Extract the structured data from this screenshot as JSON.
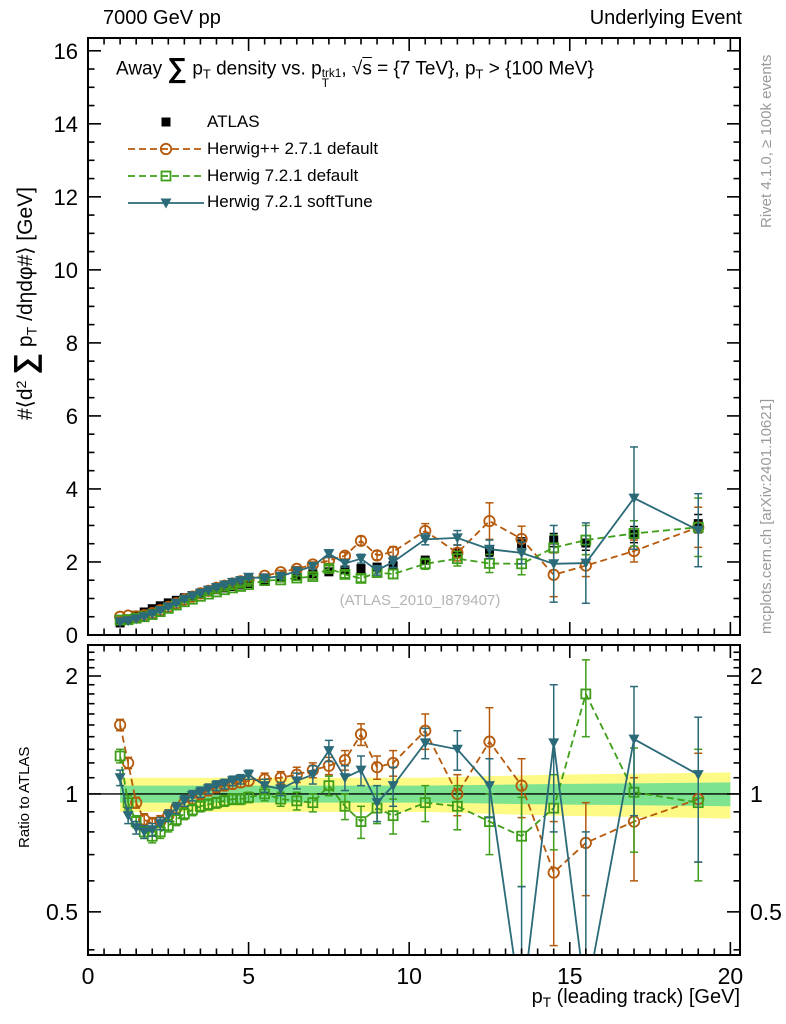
{
  "header": {
    "left": "7000 GeV pp",
    "right": "Underlying Event"
  },
  "side_notes": {
    "top": "Rivet 4.1.0, ≥ 100k events",
    "bottom": "mcplots.cern.ch [arXiv:2401.10621]"
  },
  "watermark": "(ATLAS_2010_I879407)",
  "labels": {
    "title_segments": [
      {
        "t": "Away "
      },
      {
        "big": "∑"
      },
      {
        "t": " p"
      },
      {
        "sub": "T"
      },
      {
        "t": " density vs. p"
      },
      {
        "stk": [
          "trk1",
          "T"
        ]
      },
      {
        "t": ", √"
      },
      {
        "ovl": "s"
      },
      {
        "t": " = {7 TeV}, p"
      },
      {
        "sub": "T"
      },
      {
        "t": " > {100 MeV}"
      }
    ],
    "y_main_segments": [
      {
        "t": "#⟨d"
      },
      {
        "sup": "2"
      },
      {
        "t": " "
      },
      {
        "big": "∑"
      },
      {
        "t": " p"
      },
      {
        "sub": "T"
      },
      {
        "t": " /dηdφ#⟩ [GeV]"
      }
    ],
    "y_ratio_label": "Ratio to ATLAS",
    "x_segments": [
      {
        "t": "p"
      },
      {
        "sub": "T"
      },
      {
        "t": " (leading track) [GeV]"
      }
    ]
  },
  "legend": {
    "items": [
      {
        "label": "ATLAS",
        "series": "ATLAS"
      },
      {
        "label": "Herwig++ 2.7.1 default",
        "series": "Herwig++ 2.7.1 default"
      },
      {
        "label": "Herwig 7.2.1 default",
        "series": "Herwig 7.2.1 default"
      },
      {
        "label": "Herwig 7.2.1 softTune",
        "series": "Herwig 7.2.1 softTune"
      }
    ]
  },
  "chart_data": {
    "type": "scatter",
    "title": "Away sum pT density vs. pT trk1, sqrt(s) = {7 TeV}, pT > {100 MeV}",
    "axes": {
      "x": {
        "min": 0,
        "max": 20.3,
        "majors": [
          0,
          5,
          10,
          15,
          20
        ],
        "labels": [
          "0",
          "5",
          "10",
          "15",
          "20"
        ],
        "minor_step": 0.5
      },
      "y_main": {
        "min": 0,
        "max": 16.35,
        "majors": [
          0,
          2,
          4,
          6,
          8,
          10,
          12,
          14,
          16
        ],
        "labels": [
          "0",
          "2",
          "4",
          "6",
          "8",
          "10",
          "12",
          "14",
          "16"
        ],
        "minor_step": 0.5
      },
      "y_ratio": {
        "min": 0.388,
        "max": 2.4,
        "scale": "log",
        "majors": [
          0.5,
          1,
          2
        ],
        "labels": [
          "0.5",
          "1",
          "2"
        ],
        "minors": [
          0.4,
          0.6,
          0.7,
          0.8,
          0.9,
          1.1,
          1.2,
          1.3,
          1.4,
          1.5,
          1.6,
          1.7,
          1.8,
          1.9,
          2.1,
          2.2,
          2.3
        ]
      }
    },
    "x": [
      1,
      1.25,
      1.5,
      1.75,
      2,
      2.25,
      2.5,
      2.75,
      3,
      3.25,
      3.5,
      3.75,
      4,
      4.25,
      4.5,
      4.75,
      5,
      5.5,
      6,
      6.5,
      7,
      7.5,
      8,
      8.5,
      9,
      9.5,
      10.5,
      11.5,
      12.5,
      13.5,
      14.5,
      15.5,
      17,
      19
    ],
    "series": [
      {
        "name": "ATLAS",
        "color": "#000000",
        "marker": "square-filled",
        "line": "none",
        "y": [
          0.33,
          0.44,
          0.54,
          0.63,
          0.72,
          0.8,
          0.88,
          0.95,
          1.02,
          1.08,
          1.14,
          1.19,
          1.24,
          1.29,
          1.33,
          1.37,
          1.41,
          1.49,
          1.56,
          1.62,
          1.68,
          1.73,
          1.78,
          1.82,
          1.86,
          1.9,
          2.05,
          2.25,
          2.3,
          2.5,
          2.6,
          2.52,
          2.75,
          3.05
        ],
        "ey": [
          0.01,
          0.01,
          0.01,
          0.01,
          0.01,
          0.01,
          0.01,
          0.02,
          0.02,
          0.02,
          0.02,
          0.02,
          0.02,
          0.02,
          0.03,
          0.03,
          0.03,
          0.03,
          0.04,
          0.04,
          0.04,
          0.05,
          0.05,
          0.06,
          0.06,
          0.07,
          0.1,
          0.12,
          0.14,
          0.16,
          0.18,
          0.2,
          0.22,
          0.25
        ],
        "ratio_y": null,
        "ratio_ey": null
      },
      {
        "name": "Herwig++ 2.7.1 default",
        "color": "#b5590b",
        "marker": "circle-open",
        "line": "dashed",
        "y": [
          0.5,
          0.53,
          0.51,
          0.54,
          0.6,
          0.68,
          0.77,
          0.87,
          0.97,
          1.05,
          1.14,
          1.21,
          1.29,
          1.35,
          1.41,
          1.47,
          1.52,
          1.62,
          1.72,
          1.81,
          1.93,
          2.04,
          2.17,
          2.58,
          2.18,
          2.28,
          2.85,
          2.25,
          3.12,
          2.63,
          1.65,
          1.9,
          2.3,
          2.95
        ],
        "ey": [
          0.02,
          0.02,
          0.02,
          0.02,
          0.02,
          0.02,
          0.02,
          0.02,
          0.02,
          0.03,
          0.03,
          0.03,
          0.03,
          0.03,
          0.04,
          0.04,
          0.04,
          0.05,
          0.05,
          0.06,
          0.07,
          0.08,
          0.09,
          0.12,
          0.12,
          0.14,
          0.2,
          0.22,
          0.5,
          0.35,
          0.6,
          0.3,
          0.3,
          0.55
        ],
        "ratio_y": [
          1.5,
          1.2,
          0.95,
          0.86,
          0.84,
          0.85,
          0.88,
          0.92,
          0.95,
          0.97,
          1.0,
          1.02,
          1.04,
          1.05,
          1.06,
          1.07,
          1.08,
          1.09,
          1.1,
          1.12,
          1.15,
          1.18,
          1.22,
          1.42,
          1.17,
          1.2,
          1.45,
          1.0,
          1.36,
          1.05,
          0.63,
          0.75,
          0.85,
          0.97
        ],
        "ratio_ey": [
          0.05,
          0.04,
          0.03,
          0.03,
          0.03,
          0.03,
          0.03,
          0.03,
          0.03,
          0.03,
          0.03,
          0.03,
          0.03,
          0.03,
          0.03,
          0.03,
          0.03,
          0.04,
          0.04,
          0.05,
          0.05,
          0.06,
          0.07,
          0.09,
          0.08,
          0.09,
          0.15,
          0.12,
          0.3,
          0.18,
          0.22,
          0.2,
          0.25,
          0.3
        ]
      },
      {
        "name": "Herwig 7.2.1 default",
        "color": "#3f9e1a",
        "marker": "square-open",
        "line": "dashed",
        "y": [
          0.41,
          0.42,
          0.46,
          0.5,
          0.56,
          0.64,
          0.73,
          0.82,
          0.91,
          0.98,
          1.06,
          1.12,
          1.18,
          1.24,
          1.29,
          1.33,
          1.38,
          1.49,
          1.51,
          1.56,
          1.6,
          1.82,
          1.66,
          1.55,
          1.71,
          1.67,
          1.95,
          2.09,
          1.96,
          1.95,
          2.39,
          2.6,
          2.78,
          2.95
        ],
        "ey": [
          0.02,
          0.02,
          0.02,
          0.02,
          0.02,
          0.02,
          0.02,
          0.02,
          0.02,
          0.03,
          0.03,
          0.03,
          0.03,
          0.03,
          0.04,
          0.04,
          0.04,
          0.05,
          0.05,
          0.06,
          0.07,
          0.08,
          0.09,
          0.1,
          0.11,
          0.12,
          0.15,
          0.2,
          0.25,
          0.3,
          0.35,
          0.4,
          0.35,
          0.8
        ],
        "ratio_y": [
          1.25,
          0.95,
          0.85,
          0.8,
          0.78,
          0.8,
          0.83,
          0.86,
          0.89,
          0.91,
          0.93,
          0.94,
          0.95,
          0.96,
          0.97,
          0.97,
          0.98,
          1.0,
          0.97,
          0.96,
          0.95,
          1.05,
          0.93,
          0.85,
          0.92,
          0.88,
          0.95,
          0.93,
          0.85,
          0.78,
          0.92,
          1.8,
          1.01,
          0.95
        ],
        "ratio_ey": [
          0.05,
          0.04,
          0.03,
          0.03,
          0.03,
          0.03,
          0.03,
          0.03,
          0.03,
          0.03,
          0.03,
          0.03,
          0.03,
          0.03,
          0.03,
          0.03,
          0.03,
          0.04,
          0.04,
          0.05,
          0.05,
          0.06,
          0.07,
          0.08,
          0.08,
          0.09,
          0.1,
          0.12,
          0.15,
          0.2,
          0.2,
          0.4,
          0.3,
          0.35
        ]
      },
      {
        "name": "Herwig 7.2.1 softTune",
        "color": "#2b6a78",
        "marker": "triangle-down-filled",
        "line": "solid",
        "y": [
          0.36,
          0.39,
          0.44,
          0.5,
          0.58,
          0.67,
          0.77,
          0.87,
          0.98,
          1.07,
          1.15,
          1.23,
          1.3,
          1.37,
          1.44,
          1.49,
          1.58,
          1.56,
          1.61,
          1.75,
          1.88,
          2.23,
          1.96,
          2.09,
          1.77,
          2.0,
          2.62,
          2.66,
          2.35,
          2.25,
          1.95,
          1.97,
          3.75,
          2.87
        ],
        "ey": [
          0.02,
          0.02,
          0.02,
          0.02,
          0.02,
          0.02,
          0.02,
          0.02,
          0.03,
          0.03,
          0.03,
          0.03,
          0.03,
          0.04,
          0.04,
          0.04,
          0.05,
          0.05,
          0.06,
          0.07,
          0.08,
          0.1,
          0.1,
          0.12,
          0.13,
          0.15,
          0.15,
          0.2,
          0.25,
          0.3,
          1.05,
          1.1,
          1.4,
          1.0
        ],
        "ratio_y": [
          1.1,
          0.88,
          0.82,
          0.8,
          0.81,
          0.84,
          0.88,
          0.92,
          0.96,
          0.99,
          1.01,
          1.03,
          1.05,
          1.06,
          1.08,
          1.09,
          1.12,
          1.05,
          1.03,
          1.08,
          1.12,
          1.29,
          1.1,
          1.15,
          0.95,
          1.05,
          1.35,
          1.3,
          1.05,
          0.28,
          1.35,
          0.3,
          1.38,
          1.12
        ],
        "ratio_ey": [
          0.05,
          0.04,
          0.03,
          0.03,
          0.03,
          0.03,
          0.03,
          0.03,
          0.03,
          0.03,
          0.03,
          0.03,
          0.03,
          0.03,
          0.03,
          0.03,
          0.03,
          0.04,
          0.04,
          0.05,
          0.06,
          0.08,
          0.08,
          0.1,
          0.1,
          0.12,
          0.12,
          0.15,
          0.18,
          0.3,
          0.55,
          0.5,
          0.5,
          0.45
        ]
      }
    ],
    "bands": [
      {
        "name": "band-10pct",
        "color": "#fdfb85",
        "x": [
          1,
          10.5,
          12.5,
          14.5,
          16.5,
          18.5,
          20
        ],
        "hi": [
          1.1,
          1.1,
          1.11,
          1.12,
          1.125,
          1.13,
          1.135
        ],
        "lo": [
          0.9,
          0.9,
          0.89,
          0.88,
          0.875,
          0.87,
          0.865
        ]
      },
      {
        "name": "band-5pct",
        "color": "#7de391",
        "x": [
          1,
          10.5,
          12.5,
          14.5,
          16.5,
          18.5,
          20
        ],
        "hi": [
          1.05,
          1.05,
          1.055,
          1.06,
          1.063,
          1.067,
          1.07
        ],
        "lo": [
          0.95,
          0.95,
          0.945,
          0.94,
          0.937,
          0.933,
          0.93
        ]
      }
    ],
    "ratio_reference": 1
  }
}
